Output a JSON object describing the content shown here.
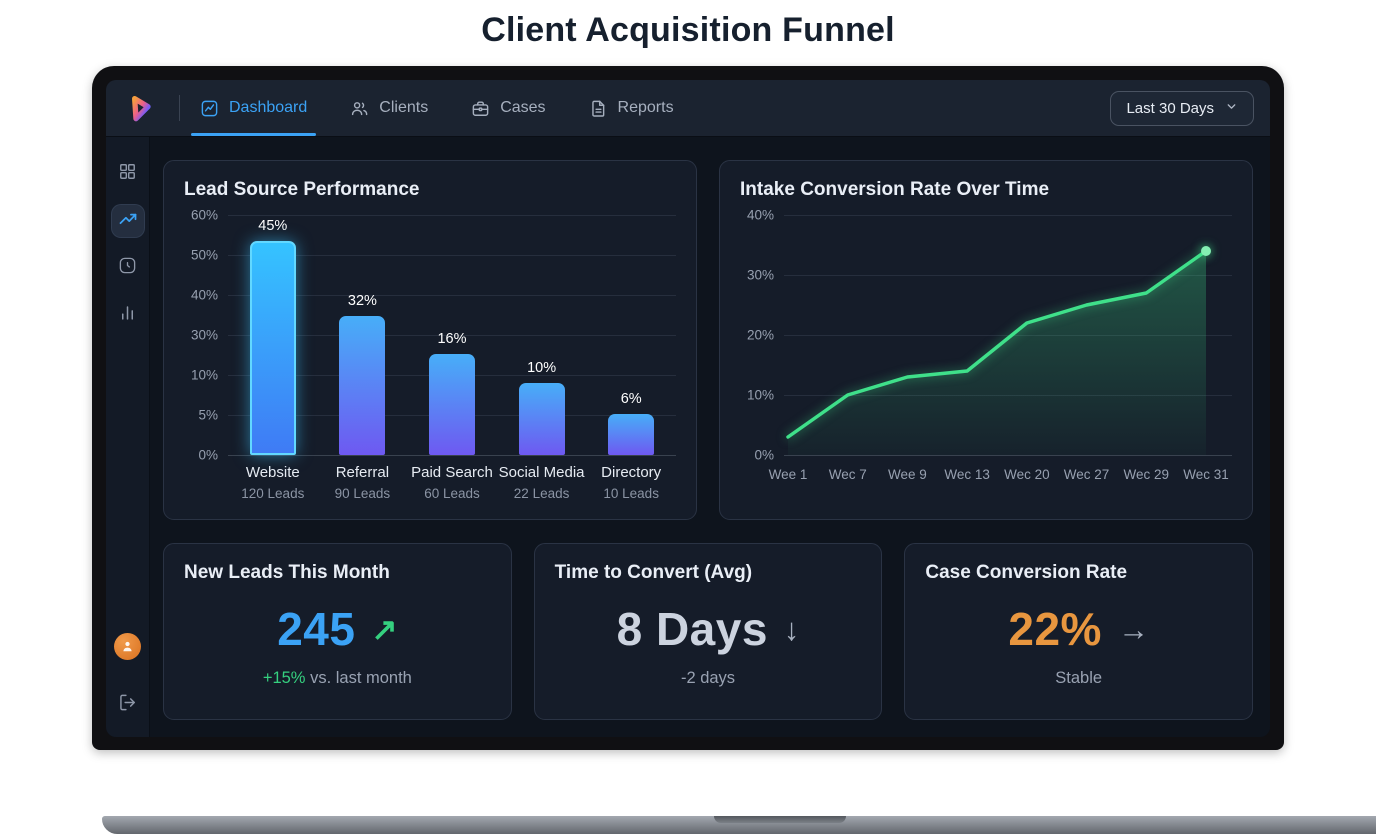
{
  "page": {
    "title": "Client Acquisition Funnel"
  },
  "navbar": {
    "tabs": [
      {
        "label": "Dashboard",
        "active": true
      },
      {
        "label": "Clients",
        "active": false
      },
      {
        "label": "Cases",
        "active": false
      },
      {
        "label": "Reports",
        "active": false
      }
    ],
    "date_filter": "Last 30 Days"
  },
  "colors": {
    "accent_blue": "#3ba2f5",
    "bar_gradient_top": "#47aef8",
    "bar_gradient_bottom": "#6e59f1",
    "highlight_bar_border": "#62d8ff",
    "line_green": "#3fe08a",
    "kpi_blue": "#3ba2f5",
    "kpi_silver": "#ccd3df",
    "kpi_orange": "#e8963f",
    "positive_green": "#35d07f"
  },
  "chart_data": [
    {
      "type": "bar",
      "title": "Lead Source Performance",
      "categories": [
        "Website",
        "Referral",
        "Paid Search",
        "Social Media",
        "Directory"
      ],
      "values": [
        45,
        32,
        16,
        10,
        6
      ],
      "value_labels": [
        "45%",
        "32%",
        "16%",
        "10%",
        "6%"
      ],
      "sublabels": [
        "120 Leads",
        "90 Leads",
        "60 Leads",
        "22 Leads",
        "10 Leads"
      ],
      "y_ticks": [
        "60%",
        "50%",
        "40%",
        "30%",
        "10%",
        "5%",
        "0%"
      ],
      "bar_height_pcts": [
        89,
        58,
        42,
        30,
        17
      ],
      "highlight_index": 0,
      "grid": true
    },
    {
      "type": "line",
      "title": "Intake Conversion Rate Over Time",
      "x": [
        "Wee 1",
        "Wec 7",
        "Wee 9",
        "Wec 13",
        "Wec 20",
        "Wec 27",
        "Wec 29",
        "Wec 31"
      ],
      "values": [
        3,
        10,
        13,
        14,
        22,
        25,
        27,
        34
      ],
      "y_ticks": [
        "40%",
        "30%",
        "20%",
        "10%",
        "0%"
      ],
      "ylim": [
        0,
        40
      ],
      "grid": true,
      "area_fill": true,
      "end_dot": true
    }
  ],
  "kpis": [
    {
      "title": "New Leads This Month",
      "value": "245",
      "value_color": "#3ba2f5",
      "arrow": "↗",
      "arrow_color": "#35d07f",
      "sub_highlight": "+15%",
      "sub_highlight_color": "#35d07f",
      "sub_rest": " vs. last month"
    },
    {
      "title": "Time to Convert (Avg)",
      "value": "8 Days",
      "value_color": "#ccd3df",
      "arrow": "↓",
      "arrow_color": "#a7b0bf",
      "sub_highlight": "",
      "sub_highlight_color": "#99a2b2",
      "sub_rest": "-2 days"
    },
    {
      "title": "Case Conversion Rate",
      "value": "22%",
      "value_color": "#e8963f",
      "arrow": "→",
      "arrow_color": "#a7b0bf",
      "sub_highlight": "",
      "sub_highlight_color": "#99a2b2",
      "sub_rest": "Stable"
    }
  ]
}
